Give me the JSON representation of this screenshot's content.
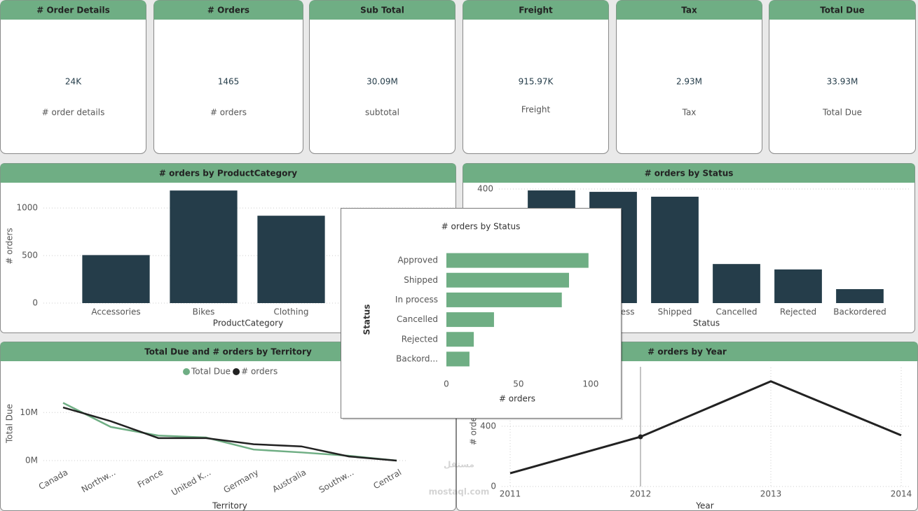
{
  "cards": [
    {
      "title": "# Order Details",
      "value": "24K",
      "label": "# order details"
    },
    {
      "title": "# Orders",
      "value": "1465",
      "label": "# orders"
    },
    {
      "title": "Sub Total",
      "value": "30.09M",
      "label": "subtotal"
    },
    {
      "title": "Freight",
      "value": "915.97K",
      "label": "Freight"
    },
    {
      "title": "Tax",
      "value": "2.93M",
      "label": "Tax"
    },
    {
      "title": "Total Due",
      "value": "33.93M",
      "label": "Total Due"
    }
  ],
  "chart_data": [
    {
      "type": "bar",
      "title": "# orders by ProductCategory",
      "categories": [
        "Accessories",
        "Bikes",
        "Clothing"
      ],
      "values": [
        505,
        1184,
        919
      ],
      "color": "#253d4a",
      "ylim": [
        0,
        1200
      ],
      "yticks": [
        0,
        500,
        1000
      ],
      "xlabel": "ProductCategory",
      "ylabel": "# orders",
      "grid": true
    },
    {
      "type": "bar",
      "title": "# orders by Status",
      "categories": [
        null,
        "In process",
        "Shipped",
        "Cancelled",
        "Rejected",
        "Backordered"
      ],
      "values": [
        395,
        390,
        373,
        137,
        118,
        49
      ],
      "color": "#253d4a",
      "ylim": [
        0,
        400
      ],
      "yticks": [
        400
      ],
      "xlabel": "Status",
      "grid": true
    },
    {
      "type": "hbar",
      "title": "# orders by Status",
      "categories": [
        "Approved",
        "Shipped",
        "In process",
        "Cancelled",
        "Rejected",
        "Backord..."
      ],
      "values": [
        98.5,
        85,
        80,
        33,
        19,
        16
      ],
      "color": "#6fae84",
      "xlim": [
        0,
        102
      ],
      "xticks": [
        0,
        50,
        100
      ],
      "xlabel": "# orders",
      "ylabel": "Status"
    },
    {
      "type": "line",
      "title": "Total Due and # orders by Territory",
      "categories": [
        "Canada",
        "Northw...",
        "France",
        "United K...",
        "Germany",
        "Australia",
        "Southw...",
        "Central"
      ],
      "series": [
        {
          "name": "Total Due",
          "color": "#6fae84",
          "values": [
            12000000,
            7000000,
            5200000,
            4800000,
            2300000,
            1700000,
            1000000,
            0
          ]
        },
        {
          "name": "# orders",
          "color": "#222222",
          "axis": "y2",
          "values": [
            449,
            333,
            190,
            190,
            138,
            120,
            35,
            0
          ]
        }
      ],
      "ylim": [
        0,
        16000000
      ],
      "yticks": [
        {
          "value": 0,
          "label": "0M"
        },
        {
          "value": 10000000,
          "label": "10M"
        }
      ],
      "y2lim": [
        0,
        650
      ],
      "xlabel": "Territory",
      "ylabel": "Total Due",
      "grid": true,
      "legend": "top"
    },
    {
      "type": "line",
      "title": "# orders by Year",
      "x": [
        2011,
        2012,
        2013,
        2014
      ],
      "xlim": [
        2011,
        2014
      ],
      "xticks": [
        2011,
        2012,
        2013,
        2014
      ],
      "series": [
        {
          "name": "# orders",
          "color": "#222222",
          "values": [
            88,
            330,
            698,
            340
          ]
        }
      ],
      "ylim": [
        0,
        790
      ],
      "yticks": [
        0,
        400
      ],
      "xlabel": "Year",
      "ylabel": "# orders",
      "grid": true
    }
  ],
  "watermark": [
    "مستقل",
    "mostaql.com"
  ]
}
